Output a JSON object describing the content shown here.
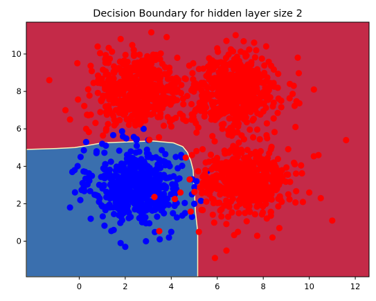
{
  "chart_data": {
    "type": "scatter",
    "title": "Decision Boundary for hidden layer size 2",
    "xlabel": "",
    "ylabel": "",
    "xlim": [
      -2.3,
      12.6
    ],
    "ylim": [
      -1.9,
      11.7
    ],
    "x_ticks": [
      0,
      2,
      4,
      6,
      8,
      10,
      12
    ],
    "y_ticks": [
      0,
      2,
      4,
      6,
      8,
      10
    ],
    "x_tick_labels": [
      "0",
      "2",
      "4",
      "6",
      "8",
      "10",
      "12"
    ],
    "y_tick_labels": [
      "0",
      "2",
      "4",
      "6",
      "8",
      "10"
    ],
    "grid": false,
    "legend": "none",
    "regions": [
      {
        "class": 0,
        "color": "#3a6fae",
        "boundary": [
          [
            -2.3,
            -1.9
          ],
          [
            5.15,
            -1.9
          ],
          [
            5.15,
            0.5
          ],
          [
            5.05,
            1.6
          ],
          [
            5.0,
            2.8
          ],
          [
            4.95,
            3.8
          ],
          [
            4.85,
            4.3
          ],
          [
            4.7,
            4.75
          ],
          [
            4.5,
            5.05
          ],
          [
            4.1,
            5.25
          ],
          [
            3.2,
            5.35
          ],
          [
            2.0,
            5.3
          ],
          [
            1.0,
            5.25
          ],
          [
            0.3,
            5.1
          ],
          [
            -0.2,
            5.0
          ],
          [
            -1.0,
            4.95
          ],
          [
            -2.3,
            4.9
          ]
        ]
      },
      {
        "class": 1,
        "color": "#c42a48"
      }
    ],
    "boundary_color": "#fdf3b8",
    "series": [
      {
        "class": 0,
        "color": "#0000ff",
        "sample_count": 520,
        "clusters": [
          {
            "center": [
              2.5,
              3.0
            ],
            "spread": [
              0.95,
              0.95
            ]
          }
        ],
        "points": [
          [
            2.8,
            6.0
          ],
          [
            1.9,
            5.6
          ],
          [
            0.3,
            5.3
          ],
          [
            -0.3,
            3.7
          ],
          [
            -0.2,
            3.8
          ],
          [
            -0.4,
            1.8
          ],
          [
            0.5,
            1.2
          ],
          [
            1.8,
            -0.1
          ],
          [
            2.0,
            -0.3
          ],
          [
            2.9,
            0.0
          ],
          [
            3.9,
            0.2
          ],
          [
            5.0,
            2.0
          ],
          [
            4.9,
            2.5
          ],
          [
            4.2,
            4.5
          ],
          [
            1.0,
            5.2
          ],
          [
            1.5,
            0.6
          ],
          [
            3.5,
            0.1
          ],
          [
            0.2,
            2.8
          ],
          [
            4.6,
            1.5
          ],
          [
            3.0,
            5.4
          ],
          [
            5.1,
            3.2
          ],
          [
            4.9,
            1.3
          ],
          [
            4.0,
            0.5
          ]
        ]
      },
      {
        "class": 1,
        "color": "#ff0000",
        "sample_count": 1560,
        "clusters": [
          {
            "center": [
              2.5,
              8.0
            ],
            "spread": [
              0.95,
              0.95
            ]
          },
          {
            "center": [
              6.8,
              8.0
            ],
            "spread": [
              0.95,
              0.95
            ]
          },
          {
            "center": [
              7.2,
              3.2
            ],
            "spread": [
              0.95,
              0.95
            ]
          }
        ],
        "points": [
          [
            -1.3,
            8.6
          ],
          [
            -0.6,
            7.0
          ],
          [
            -0.4,
            6.5
          ],
          [
            0.3,
            6.0
          ],
          [
            1.8,
            10.8
          ],
          [
            3.8,
            10.9
          ],
          [
            6.4,
            10.7
          ],
          [
            6.8,
            11.0
          ],
          [
            9.5,
            9.8
          ],
          [
            10.2,
            8.1
          ],
          [
            11.6,
            5.4
          ],
          [
            10.4,
            4.6
          ],
          [
            11.0,
            1.1
          ],
          [
            10.5,
            2.3
          ],
          [
            8.4,
            0.2
          ],
          [
            6.4,
            -0.5
          ],
          [
            6.9,
            0.5
          ],
          [
            5.9,
            -0.9
          ],
          [
            5.2,
            0.5
          ],
          [
            4.9,
            4.6
          ],
          [
            4.4,
            2.6
          ],
          [
            4.8,
            3.3
          ],
          [
            5.5,
            4.2
          ],
          [
            10.0,
            2.6
          ],
          [
            9.4,
            6.1
          ],
          [
            4.5,
            6.7
          ],
          [
            6.0,
            10.3
          ],
          [
            0.8,
            10.4
          ],
          [
            5.1,
            5.8
          ],
          [
            8.7,
            0.7
          ]
        ]
      }
    ]
  }
}
